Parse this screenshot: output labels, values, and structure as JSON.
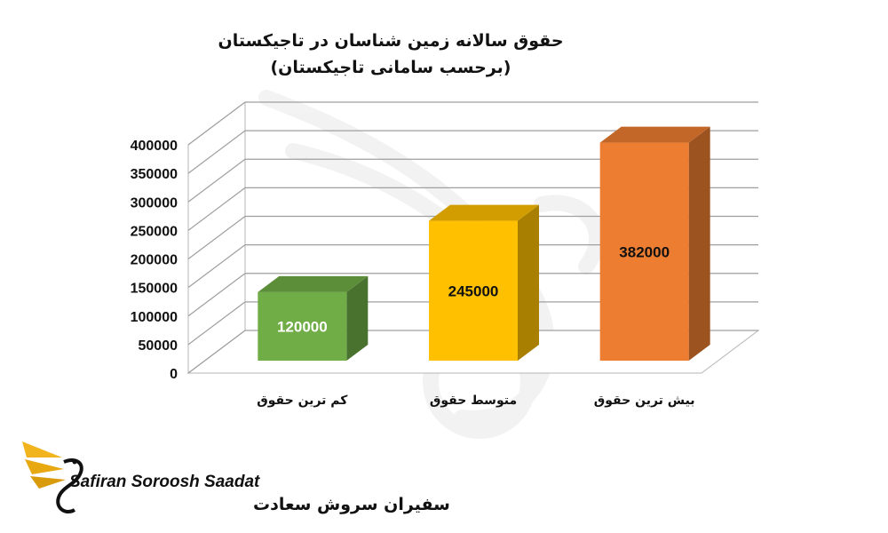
{
  "chart_data": {
    "type": "bar",
    "title": "حقوق سالانه زمین شناسان در تاجیکستان",
    "subtitle": "(برحسب سامانی تاجیکستان)",
    "categories": [
      "کم ترین حقوق",
      "متوسط حقوق",
      "بیش ترین حقوق"
    ],
    "values": [
      120000,
      245000,
      382000
    ],
    "data_labels": [
      "120000",
      "245000",
      "382000"
    ],
    "colors": [
      "#70ad47",
      "#ffc000",
      "#ed7d31"
    ],
    "ylim": [
      0,
      400000
    ],
    "y_ticks": [
      "0",
      "50000",
      "100000",
      "150000",
      "200000",
      "250000",
      "300000",
      "350000",
      "400000"
    ],
    "grid": true,
    "style": "3d",
    "legend": "none"
  },
  "logo": {
    "latin": "Safiran Soroosh Saadat",
    "farsi": "سفیران سروش سعادت"
  }
}
